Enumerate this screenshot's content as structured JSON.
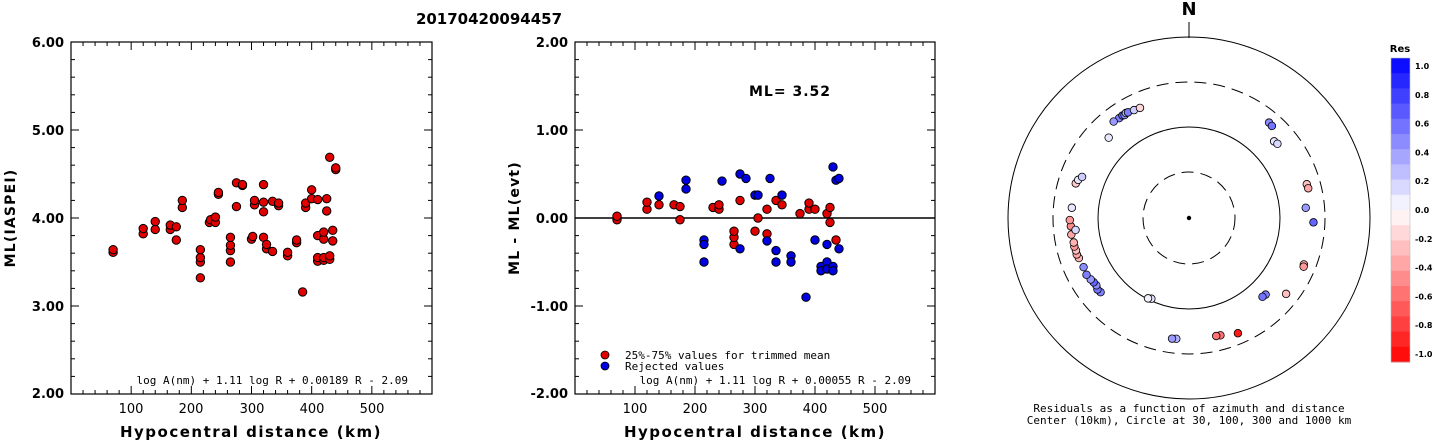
{
  "title": "20170420094457",
  "chart_data": [
    {
      "type": "scatter",
      "ylabel": "ML(IASPEI)",
      "xlabel": "Hypocentral distance (km)",
      "xlim": [
        0,
        600
      ],
      "ylim": [
        2.0,
        6.0
      ],
      "xticks": [
        "100",
        "200",
        "300",
        "400",
        "500"
      ],
      "yticks": [
        "2.00",
        "3.00",
        "4.00",
        "5.00",
        "6.00"
      ],
      "formula": "log A(nm) + 1.11 log R + 0.00189 R - 2.09",
      "series": [
        {
          "color": "#e00000",
          "points": [
            [
              70,
              3.61
            ],
            [
              70,
              3.64
            ],
            [
              120,
              3.82
            ],
            [
              120,
              3.88
            ],
            [
              140,
              3.87
            ],
            [
              140,
              3.96
            ],
            [
              165,
              3.87
            ],
            [
              165,
              3.92
            ],
            [
              175,
              3.75
            ],
            [
              175,
              3.9
            ],
            [
              185,
              4.12
            ],
            [
              185,
              4.2
            ],
            [
              215,
              3.32
            ],
            [
              215,
              3.5
            ],
            [
              215,
              3.55
            ],
            [
              215,
              3.64
            ],
            [
              230,
              3.95
            ],
            [
              232,
              3.98
            ],
            [
              240,
              3.95
            ],
            [
              240,
              4.01
            ],
            [
              245,
              4.27
            ],
            [
              245,
              4.29
            ],
            [
              265,
              3.5
            ],
            [
              265,
              3.63
            ],
            [
              265,
              3.69
            ],
            [
              265,
              3.78
            ],
            [
              275,
              4.13
            ],
            [
              275,
              4.4
            ],
            [
              285,
              4.37
            ],
            [
              285,
              4.38
            ],
            [
              300,
              3.76
            ],
            [
              302,
              3.79
            ],
            [
              305,
              4.15
            ],
            [
              305,
              4.2
            ],
            [
              320,
              3.78
            ],
            [
              320,
              4.07
            ],
            [
              320,
              4.18
            ],
            [
              320,
              4.38
            ],
            [
              325,
              3.65
            ],
            [
              325,
              3.7
            ],
            [
              335,
              3.62
            ],
            [
              335,
              4.19
            ],
            [
              345,
              4.14
            ],
            [
              345,
              4.17
            ],
            [
              360,
              3.57
            ],
            [
              360,
              3.61
            ],
            [
              375,
              3.72
            ],
            [
              375,
              3.75
            ],
            [
              385,
              3.16
            ],
            [
              390,
              4.12
            ],
            [
              390,
              4.17
            ],
            [
              400,
              4.22
            ],
            [
              400,
              4.32
            ],
            [
              410,
              3.51
            ],
            [
              410,
              3.55
            ],
            [
              410,
              3.8
            ],
            [
              410,
              4.21
            ],
            [
              420,
              3.52
            ],
            [
              420,
              3.55
            ],
            [
              420,
              3.76
            ],
            [
              420,
              3.84
            ],
            [
              425,
              4.08
            ],
            [
              425,
              4.22
            ],
            [
              430,
              3.53
            ],
            [
              430,
              3.57
            ],
            [
              430,
              4.69
            ],
            [
              435,
              3.74
            ],
            [
              435,
              3.86
            ],
            [
              440,
              4.55
            ],
            [
              440,
              4.57
            ]
          ]
        }
      ]
    },
    {
      "type": "scatter",
      "ylabel": "ML - ML(evt)",
      "xlabel": "Hypocentral distance (km)",
      "xlim": [
        0,
        600
      ],
      "ylim": [
        -2.0,
        2.0
      ],
      "xticks": [
        "100",
        "200",
        "300",
        "400",
        "500"
      ],
      "yticks": [
        "-2.00",
        "-1.00",
        "0.00",
        "1.00",
        "2.00"
      ],
      "annotation": "ML= 3.52",
      "formula": "log A(nm) + 1.11 log R + 0.00055 R - 2.09",
      "legend": [
        {
          "label": "25%-75% values for trimmed mean",
          "color": "#e00000"
        },
        {
          "label": "Rejected values",
          "color": "#0000e0"
        }
      ],
      "series": [
        {
          "name": "25%-75% values for trimmed mean",
          "color": "#e00000",
          "points": [
            [
              70,
              -0.02
            ],
            [
              70,
              0.02
            ],
            [
              120,
              0.1
            ],
            [
              120,
              0.18
            ],
            [
              140,
              0.15
            ],
            [
              165,
              0.15
            ],
            [
              175,
              -0.02
            ],
            [
              175,
              0.13
            ],
            [
              230,
              0.12
            ],
            [
              240,
              0.1
            ],
            [
              240,
              0.15
            ],
            [
              265,
              -0.3
            ],
            [
              265,
              -0.22
            ],
            [
              265,
              -0.15
            ],
            [
              275,
              0.2
            ],
            [
              300,
              -0.15
            ],
            [
              305,
              0.0
            ],
            [
              320,
              0.1
            ],
            [
              320,
              -0.18
            ],
            [
              335,
              0.2
            ],
            [
              345,
              0.15
            ],
            [
              375,
              0.05
            ],
            [
              390,
              0.1
            ],
            [
              390,
              0.17
            ],
            [
              400,
              0.1
            ],
            [
              420,
              0.05
            ],
            [
              425,
              -0.05
            ],
            [
              425,
              0.12
            ],
            [
              435,
              -0.25
            ]
          ]
        },
        {
          "name": "Rejected values",
          "color": "#0000e0",
          "points": [
            [
              140,
              0.25
            ],
            [
              185,
              0.33
            ],
            [
              185,
              0.43
            ],
            [
              215,
              -0.25
            ],
            [
              215,
              -0.3
            ],
            [
              215,
              -0.5
            ],
            [
              245,
              0.42
            ],
            [
              275,
              -0.35
            ],
            [
              275,
              0.5
            ],
            [
              285,
              0.45
            ],
            [
              300,
              0.26
            ],
            [
              305,
              0.26
            ],
            [
              320,
              -0.26
            ],
            [
              325,
              0.45
            ],
            [
              335,
              -0.37
            ],
            [
              335,
              -0.5
            ],
            [
              345,
              0.26
            ],
            [
              360,
              -0.43
            ],
            [
              360,
              -0.5
            ],
            [
              385,
              -0.9
            ],
            [
              400,
              -0.25
            ],
            [
              410,
              -0.55
            ],
            [
              410,
              -0.6
            ],
            [
              420,
              -0.5
            ],
            [
              420,
              -0.58
            ],
            [
              420,
              -0.3
            ],
            [
              430,
              -0.55
            ],
            [
              430,
              -0.6
            ],
            [
              430,
              0.58
            ],
            [
              435,
              0.43
            ],
            [
              440,
              0.45
            ],
            [
              440,
              -0.35
            ]
          ]
        }
      ]
    },
    {
      "type": "scatter",
      "subtype": "polar",
      "north_label": "N",
      "caption_line1": "Residuals as a function of azimuth and distance",
      "caption_line2": "Center (10km), Circle at 30, 100, 300 and 1000 km",
      "colorbar_title": "Res",
      "colorbar_ticks": [
        "1.0",
        "0.8",
        "0.6",
        "0.4",
        "0.2",
        "0.0",
        "-0.2",
        "-0.4",
        "-0.6",
        "-0.8",
        "-1.0"
      ],
      "colorbar_scale": {
        "max": 1.0,
        "min": -1.0,
        "max_color": "#0000ff",
        "zero_color": "#ffffff",
        "min_color": "#ff0000"
      },
      "points": [
        {
          "az": 325,
          "dist": 390,
          "res": 0.5
        },
        {
          "az": 327,
          "dist": 395,
          "res": 0.6
        },
        {
          "az": 328,
          "dist": 385,
          "res": 0.4
        },
        {
          "az": 329,
          "dist": 400,
          "res": 0.3
        },
        {
          "az": 330,
          "dist": 392,
          "res": 0.5
        },
        {
          "az": 333,
          "dist": 380,
          "res": 0.2
        },
        {
          "az": 336,
          "dist": 372,
          "res": -0.15
        },
        {
          "az": 322,
          "dist": 398,
          "res": 0.4
        },
        {
          "az": 315,
          "dist": 290,
          "res": 0.1
        },
        {
          "az": 40,
          "dist": 430,
          "res": 0.45
        },
        {
          "az": 42,
          "dist": 420,
          "res": 0.55
        },
        {
          "az": 48,
          "dist": 300,
          "res": 0.1
        },
        {
          "az": 50,
          "dist": 310,
          "res": 0.15
        },
        {
          "az": 74,
          "dist": 400,
          "res": -0.25
        },
        {
          "az": 76,
          "dist": 405,
          "res": -0.35
        },
        {
          "az": 85,
          "dist": 330,
          "res": 0.4
        },
        {
          "az": 92,
          "dist": 430,
          "res": 0.6
        },
        {
          "az": 112,
          "dist": 420,
          "res": -0.35
        },
        {
          "az": 113,
          "dist": 430,
          "res": -0.4
        },
        {
          "az": 128,
          "dist": 410,
          "res": -0.25
        },
        {
          "az": 135,
          "dist": 240,
          "res": 0.5
        },
        {
          "az": 137,
          "dist": 235,
          "res": 0.55
        },
        {
          "az": 157,
          "dist": 440,
          "res": -0.9
        },
        {
          "az": 165,
          "dist": 385,
          "res": -0.55
        },
        {
          "az": 167,
          "dist": 380,
          "res": -0.55
        },
        {
          "az": 186,
          "dist": 385,
          "res": 0.3
        },
        {
          "az": 188,
          "dist": 390,
          "res": 0.4
        },
        {
          "az": 205,
          "dist": 120,
          "res": 0.1
        },
        {
          "az": 207,
          "dist": 125,
          "res": 0.05
        },
        {
          "az": 230,
          "dist": 310,
          "res": 0.5
        },
        {
          "az": 232,
          "dist": 318,
          "res": 0.55
        },
        {
          "az": 234,
          "dist": 300,
          "res": 0.45
        },
        {
          "az": 236,
          "dist": 305,
          "res": 0.6
        },
        {
          "az": 238,
          "dist": 315,
          "res": 0.4
        },
        {
          "az": 241,
          "dist": 330,
          "res": 0.5
        },
        {
          "az": 245,
          "dist": 320,
          "res": 0.45
        },
        {
          "az": 250,
          "dist": 330,
          "res": -0.3
        },
        {
          "az": 252,
          "dist": 340,
          "res": -0.35
        },
        {
          "az": 254,
          "dist": 335,
          "res": -0.25
        },
        {
          "az": 256,
          "dist": 342,
          "res": -0.4
        },
        {
          "az": 258,
          "dist": 338,
          "res": -0.3
        },
        {
          "az": 262,
          "dist": 350,
          "res": -0.35
        },
        {
          "az": 266,
          "dist": 345,
          "res": -0.45
        },
        {
          "az": 269,
          "dist": 355,
          "res": -0.4
        },
        {
          "az": 264,
          "dist": 295,
          "res": 0.15
        },
        {
          "az": 275,
          "dist": 335,
          "res": 0.1
        },
        {
          "az": 287,
          "dist": 345,
          "res": -0.2
        },
        {
          "az": 289,
          "dist": 330,
          "res": 0.1
        },
        {
          "az": 291,
          "dist": 300,
          "res": 0.2
        }
      ]
    }
  ]
}
